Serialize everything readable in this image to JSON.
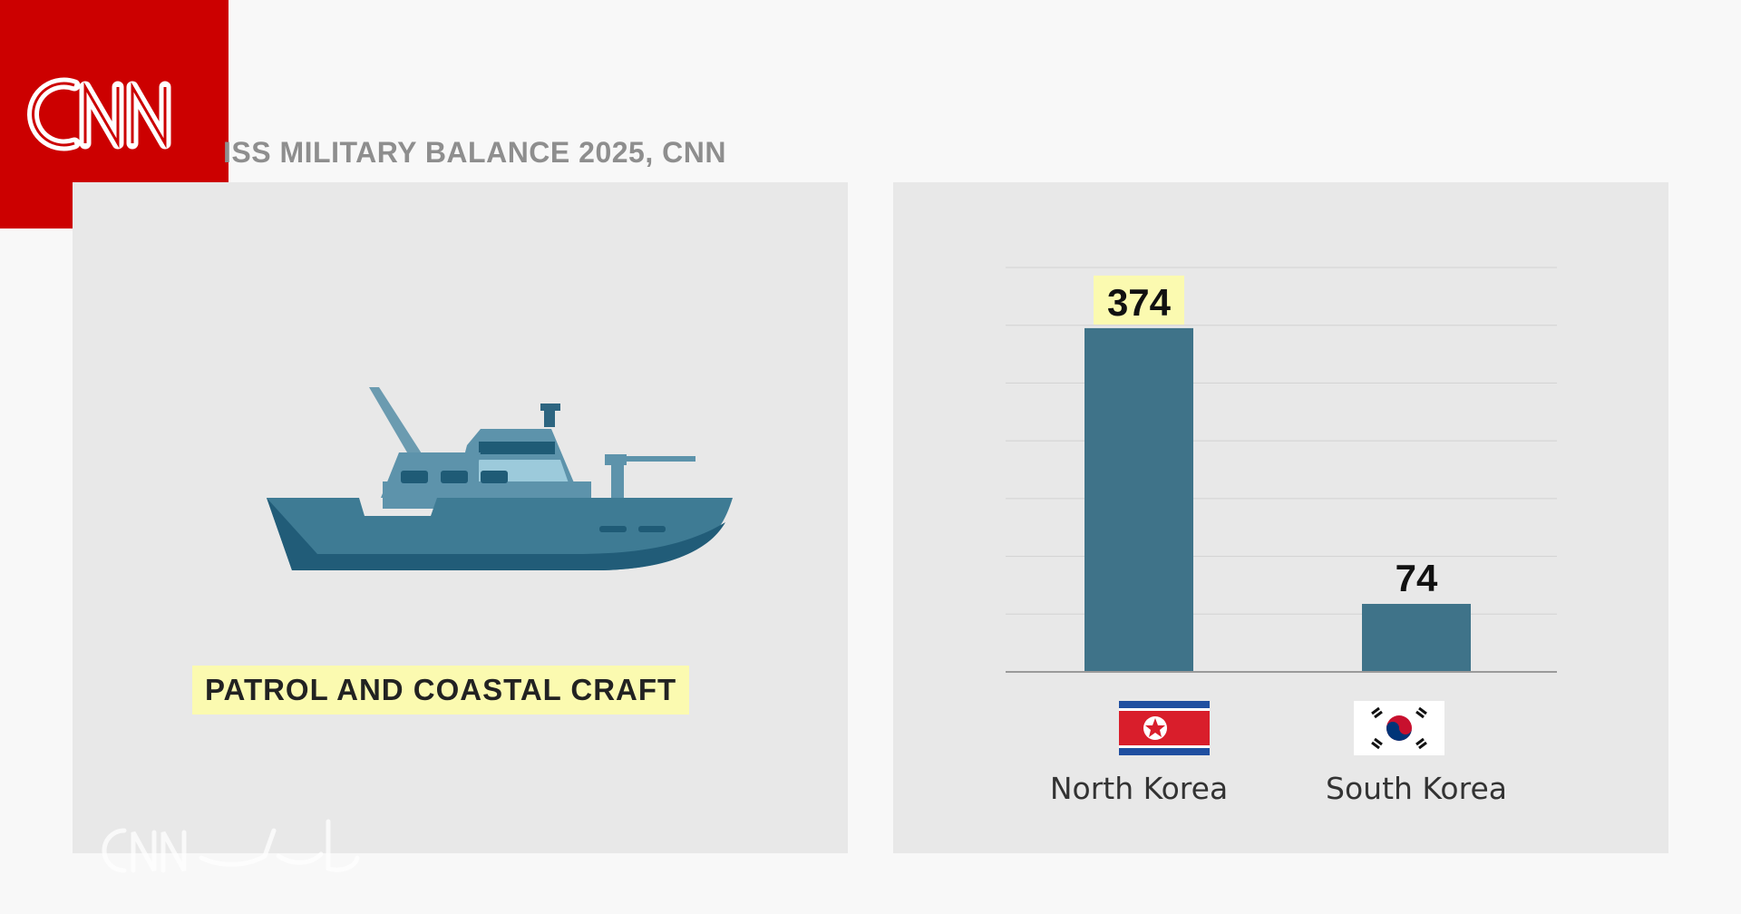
{
  "brand": {
    "logo_text": "CNN"
  },
  "source_text": "ISS MILITARY BALANCE 2025, CNN",
  "left_panel": {
    "icon": "patrol-boat-icon",
    "label": "PATROL AND COASTAL CRAFT"
  },
  "chart_data": {
    "type": "bar",
    "categories": [
      "North Korea",
      "South Korea"
    ],
    "values": [
      374,
      74
    ],
    "value_labels": [
      "374",
      "74"
    ],
    "title": "",
    "xlabel": "",
    "ylabel": "",
    "ylim": [
      0,
      440
    ],
    "grid": true,
    "category_icons": [
      "north-korea-flag-icon",
      "south-korea-flag-icon"
    ],
    "colors": {
      "bar": "#3f7389",
      "highlight": "#fbfab0"
    }
  },
  "watermark": {
    "icon": "cnn-arabic-watermark-icon"
  }
}
